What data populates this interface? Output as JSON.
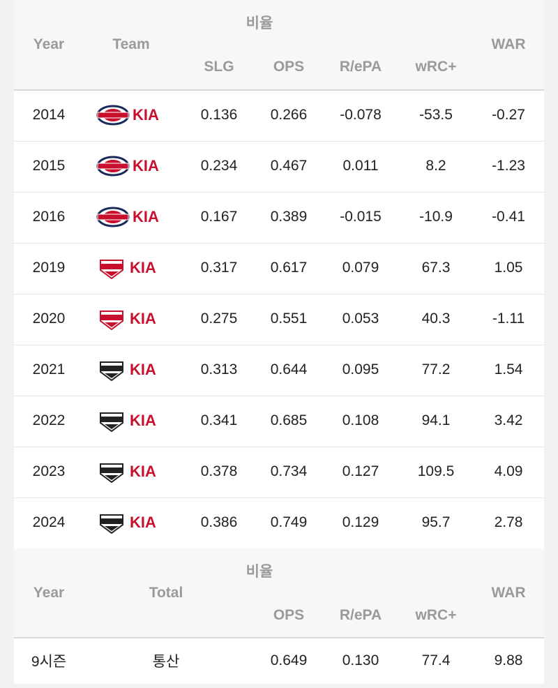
{
  "table": {
    "header": {
      "group": "비율",
      "columns": [
        "Year",
        "Team",
        "SLG",
        "OPS",
        "R/ePA",
        "wRC+",
        "WAR"
      ]
    },
    "rows": [
      [
        "2014",
        "KIA",
        "0.136",
        "0.266",
        "-0.078",
        "-53.5",
        "-0.27"
      ],
      [
        "2015",
        "KIA",
        "0.234",
        "0.467",
        "0.011",
        "8.2",
        "-1.23"
      ],
      [
        "2016",
        "KIA",
        "0.167",
        "0.389",
        "-0.015",
        "-10.9",
        "-0.41"
      ],
      [
        "2019",
        "KIA",
        "0.317",
        "0.617",
        "0.079",
        "67.3",
        "1.05"
      ],
      [
        "2020",
        "KIA",
        "0.275",
        "0.551",
        "0.053",
        "40.3",
        "-1.11"
      ],
      [
        "2021",
        "KIA",
        "0.313",
        "0.644",
        "0.095",
        "77.2",
        "1.54"
      ],
      [
        "2022",
        "KIA",
        "0.341",
        "0.685",
        "0.108",
        "94.1",
        "3.42"
      ],
      [
        "2023",
        "KIA",
        "0.378",
        "0.734",
        "0.127",
        "109.5",
        "4.09"
      ],
      [
        "2024",
        "KIA",
        "0.386",
        "0.749",
        "0.129",
        "95.7",
        "2.78"
      ]
    ]
  },
  "total_table": {
    "header": {
      "group": "비율",
      "columns": [
        "Year",
        "Total",
        "OPS",
        "R/ePA",
        "wRC+",
        "WAR"
      ]
    },
    "row": [
      "9시즌",
      "통산",
      "0.649",
      "0.130",
      "77.4",
      "9.88"
    ]
  }
}
